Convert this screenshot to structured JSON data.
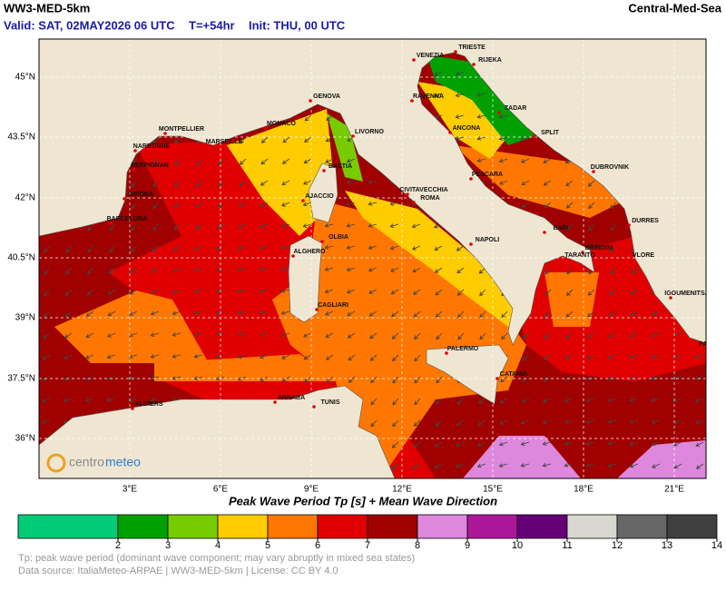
{
  "header": {
    "model": "WW3-MED-5km",
    "region": "Central-Med-Sea",
    "valid": "Valid: SAT, 02MAY2026 06 UTC",
    "lead": "T=+54hr",
    "init": "Init: THU, 00 UTC"
  },
  "map": {
    "lat_labels": [
      "45°N",
      "43.5°N",
      "42°N",
      "40.5°N",
      "39°N",
      "37.5°N",
      "36°N"
    ],
    "lon_labels": [
      "3°E",
      "6°E",
      "9°E",
      "12°E",
      "15°E",
      "18°E",
      "21°E"
    ],
    "cities": [
      "TRIESTE",
      "RIJEKA",
      "VENEZIA",
      "RAVENNA",
      "ZADAR",
      "GENOVA",
      "MONACO",
      "LIVORNO",
      "ANCONA",
      "SPLIT",
      "MONTPELLIER",
      "MARSEILLE",
      "NARBONNE",
      "BASTIA",
      "DUBROVNIK",
      "PERPIGNAN",
      "PESCARA",
      "CIVITAVECCHIA",
      "ROMA",
      "AJACCIO",
      "GIRONA",
      "BARCELONA",
      "DURRES",
      "BARI",
      "NAPOLI",
      "OLBIA",
      "BRINDISI",
      "ALGHERO",
      "TARANTO",
      "VLORE",
      "IGOUMENITSA",
      "CAGLIARI",
      "PATRAS",
      "PALERMO",
      "CATANIA",
      "ANNABA",
      "ALGIERS",
      "TUNIS"
    ],
    "logo": [
      "centro",
      "meteo"
    ]
  },
  "colorbar": {
    "title": "Peak Wave Period Tp [s]  +  Mean Wave Direction",
    "ticks": [
      2,
      3,
      4,
      5,
      6,
      7,
      8,
      9,
      10,
      11,
      12,
      13,
      14
    ],
    "colors": [
      "#00cc77",
      "#00a000",
      "#77cc00",
      "#ffcc00",
      "#ff7700",
      "#e00000",
      "#a00000",
      "#dd88dd",
      "#aa1899",
      "#660077",
      "#d8d8d0",
      "#666666",
      "#404040"
    ]
  },
  "footer": {
    "note": "Tp: peak wave period (dominant wave component; may vary abruptly in mixed sea states)",
    "source": "Data source: ItaliaMeteo-ARPAE | WW3-MED-5km | License: CC BY 4.0"
  }
}
